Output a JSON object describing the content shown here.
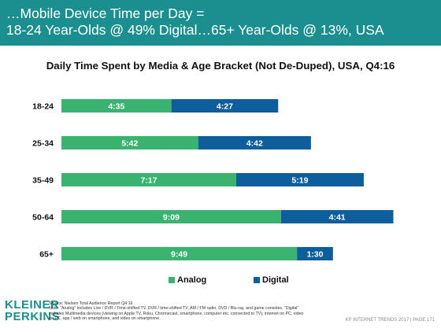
{
  "header": {
    "line1": "…Mobile Device Time per Day =",
    "line2": "18-24 Year-Olds @ 49% Digital…65+ Year-Olds @ 13%, USA",
    "background": "#1b8f8f"
  },
  "chart_data": {
    "type": "bar",
    "orientation": "horizontal",
    "stacked": true,
    "title": "Daily Time Spent by Media & Age Bracket (Not De-Duped), USA, Q4:16",
    "categories": [
      "18-24",
      "25-34",
      "35-49",
      "50-64",
      "65+"
    ],
    "series": [
      {
        "name": "Analog",
        "color": "#3ab371",
        "values": [
          4.583,
          5.7,
          7.283,
          9.15,
          9.817
        ],
        "labels": [
          "4:35",
          "5:42",
          "7:17",
          "9:09",
          "9:49"
        ]
      },
      {
        "name": "Digital",
        "color": "#0f5e9c",
        "values": [
          4.45,
          4.7,
          5.317,
          4.683,
          1.5
        ],
        "labels": [
          "4:27",
          "4:42",
          "5:19",
          "4:41",
          "1:30"
        ]
      }
    ],
    "unit": "hours:minutes",
    "legend_position": "bottom",
    "grid": false
  },
  "footer": {
    "logo_line1": "KLEINER",
    "logo_line2": "PERKINS",
    "source": "Source: Nielsen Total Audience Report Q4:16",
    "note": "Note: “Analog” includes Live / DVR / Time-shifted TV, DVR / time-shifted TV, AM / FM radio, DVD / Blu-ray, and game consoles. “Digital” includes Multimedia devices (viewing on Apple TV, Roku, Chromecast, smartphone, computer etc. connected to TV), internet on PC, video on PC, app / web on smartphone, and video on smartphone.",
    "right_text": "KP INTERNET TRENDS 2017  |  PAGE 171"
  }
}
